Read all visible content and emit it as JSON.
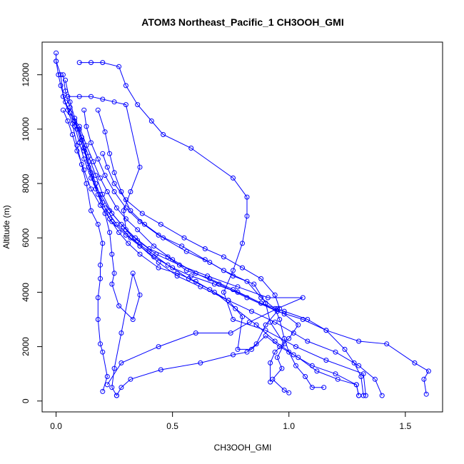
{
  "chart_data": {
    "type": "line",
    "title": "ATOM3 Northeast_Pacific_1 CH3OOH_GMI",
    "xlabel": "CH3OOH_GMI",
    "ylabel": "Altitude (m)",
    "xlim": [
      -0.06,
      1.66
    ],
    "ylim": [
      -400,
      13200
    ],
    "xticks": [
      "0.0",
      "0.5",
      "1.0",
      "1.5"
    ],
    "xtick_values": [
      0,
      0.5,
      1.0,
      1.5
    ],
    "yticks": [
      "0",
      "2000",
      "4000",
      "6000",
      "8000",
      "10000",
      "12000"
    ],
    "ytick_values": [
      0,
      2000,
      4000,
      6000,
      8000,
      10000,
      12000
    ],
    "grid": false,
    "legend": "none",
    "colors": {
      "series": "#0000ff",
      "axis": "#000000"
    },
    "series": [
      {
        "points": [
          [
            0.0,
            12800
          ],
          [
            0.0,
            12500
          ],
          [
            0.02,
            12000
          ],
          [
            0.03,
            11200
          ],
          [
            0.05,
            10700
          ],
          [
            0.07,
            10200
          ],
          [
            0.09,
            9400
          ],
          [
            0.11,
            8700
          ],
          [
            0.13,
            8000
          ],
          [
            0.15,
            7000
          ],
          [
            0.18,
            6500
          ],
          [
            0.2,
            5800
          ],
          [
            0.19,
            5000
          ],
          [
            0.19,
            4500
          ],
          [
            0.18,
            3800
          ],
          [
            0.18,
            3000
          ],
          [
            0.19,
            2100
          ],
          [
            0.2,
            1800
          ],
          [
            0.22,
            900
          ],
          [
            0.2,
            350
          ]
        ]
      },
      {
        "points": [
          [
            0.03,
            12000
          ],
          [
            0.04,
            11400
          ],
          [
            0.06,
            10800
          ],
          [
            0.09,
            10000
          ],
          [
            0.12,
            9200
          ],
          [
            0.15,
            8400
          ],
          [
            0.18,
            7600
          ],
          [
            0.21,
            6900
          ],
          [
            0.23,
            6200
          ],
          [
            0.24,
            5400
          ],
          [
            0.25,
            4700
          ],
          [
            0.24,
            4300
          ],
          [
            0.27,
            3500
          ],
          [
            0.33,
            3000
          ],
          [
            0.36,
            3900
          ],
          [
            0.33,
            4700
          ],
          [
            0.28,
            2500
          ],
          [
            0.25,
            1200
          ],
          [
            0.24,
            500
          ],
          [
            0.26,
            200
          ]
        ]
      },
      {
        "points": [
          [
            0.04,
            11800
          ],
          [
            0.06,
            11000
          ],
          [
            0.08,
            10400
          ],
          [
            0.11,
            9600
          ],
          [
            0.14,
            8800
          ],
          [
            0.17,
            8000
          ],
          [
            0.2,
            7300
          ],
          [
            0.23,
            6700
          ],
          [
            0.27,
            6200
          ],
          [
            0.31,
            5800
          ],
          [
            0.36,
            5400
          ],
          [
            0.44,
            4900
          ],
          [
            0.52,
            4700
          ],
          [
            0.6,
            4400
          ],
          [
            0.68,
            4000
          ],
          [
            0.77,
            3400
          ],
          [
            0.86,
            2800
          ],
          [
            0.94,
            2200
          ],
          [
            1.02,
            1700
          ],
          [
            1.1,
            1300
          ],
          [
            1.2,
            1000
          ],
          [
            1.29,
            600
          ],
          [
            1.3,
            200
          ]
        ]
      },
      {
        "points": [
          [
            0.1,
            12450
          ],
          [
            0.15,
            12450
          ],
          [
            0.2,
            12450
          ],
          [
            0.27,
            12300
          ],
          [
            0.3,
            11600
          ],
          [
            0.35,
            10900
          ],
          [
            0.41,
            10300
          ],
          [
            0.46,
            9800
          ],
          [
            0.58,
            9300
          ],
          [
            0.76,
            8200
          ],
          [
            0.82,
            7500
          ],
          [
            0.82,
            6800
          ],
          [
            0.8,
            5800
          ],
          [
            0.76,
            4800
          ],
          [
            0.72,
            4000
          ],
          [
            0.76,
            3000
          ],
          [
            0.9,
            2600
          ],
          [
            1.03,
            2000
          ],
          [
            1.16,
            1500
          ],
          [
            1.32,
            1000
          ],
          [
            1.33,
            200
          ]
        ]
      },
      {
        "points": [
          [
            0.05,
            11200
          ],
          [
            0.1,
            11200
          ],
          [
            0.15,
            11200
          ],
          [
            0.2,
            11100
          ],
          [
            0.25,
            11000
          ],
          [
            0.3,
            10900
          ],
          [
            0.36,
            8600
          ],
          [
            0.32,
            7700
          ],
          [
            0.29,
            7000
          ],
          [
            0.3,
            6300
          ],
          [
            0.36,
            5700
          ],
          [
            0.44,
            5100
          ],
          [
            0.52,
            4600
          ],
          [
            0.62,
            4200
          ],
          [
            0.74,
            3700
          ],
          [
            0.84,
            3300
          ],
          [
            0.94,
            2900
          ],
          [
            1.02,
            2500
          ],
          [
            1.08,
            2200
          ],
          [
            1.2,
            1800
          ],
          [
            1.3,
            1300
          ],
          [
            1.37,
            800
          ],
          [
            1.4,
            200
          ]
        ]
      },
      {
        "points": [
          [
            0.06,
            10600
          ],
          [
            0.1,
            10100
          ],
          [
            0.13,
            9400
          ],
          [
            0.16,
            8800
          ],
          [
            0.19,
            8200
          ],
          [
            0.22,
            7700
          ],
          [
            0.26,
            7100
          ],
          [
            0.3,
            6700
          ],
          [
            0.35,
            6300
          ],
          [
            0.42,
            5700
          ],
          [
            0.5,
            5200
          ],
          [
            0.6,
            4700
          ],
          [
            0.7,
            4300
          ],
          [
            0.82,
            3800
          ],
          [
            0.95,
            3300
          ],
          [
            1.06,
            3000
          ],
          [
            1.16,
            2600
          ],
          [
            1.3,
            2200
          ],
          [
            1.42,
            2100
          ],
          [
            1.54,
            1400
          ],
          [
            1.6,
            1100
          ],
          [
            1.58,
            800
          ],
          [
            1.59,
            250
          ]
        ]
      },
      {
        "points": [
          [
            0.08,
            10300
          ],
          [
            0.11,
            9700
          ],
          [
            0.14,
            9000
          ],
          [
            0.17,
            8300
          ],
          [
            0.2,
            7600
          ],
          [
            0.24,
            6900
          ],
          [
            0.29,
            6400
          ],
          [
            0.35,
            5900
          ],
          [
            0.43,
            5400
          ],
          [
            0.53,
            5000
          ],
          [
            0.65,
            4600
          ],
          [
            0.78,
            4200
          ],
          [
            0.91,
            3800
          ],
          [
            1.06,
            3800
          ],
          [
            0.95,
            3400
          ],
          [
            0.83,
            2900
          ],
          [
            0.75,
            2500
          ],
          [
            0.6,
            2500
          ],
          [
            0.44,
            2000
          ],
          [
            0.28,
            1400
          ],
          [
            0.22,
            600
          ]
        ]
      },
      {
        "points": [
          [
            0.12,
            10700
          ],
          [
            0.13,
            10100
          ],
          [
            0.15,
            9500
          ],
          [
            0.18,
            8900
          ],
          [
            0.21,
            8300
          ],
          [
            0.25,
            7700
          ],
          [
            0.3,
            7100
          ],
          [
            0.36,
            6600
          ],
          [
            0.44,
            6100
          ],
          [
            0.54,
            5700
          ],
          [
            0.64,
            5200
          ],
          [
            0.72,
            4800
          ],
          [
            0.82,
            4400
          ],
          [
            0.88,
            3800
          ],
          [
            0.94,
            3400
          ],
          [
            0.96,
            3000
          ],
          [
            0.98,
            2300
          ],
          [
            1.0,
            1800
          ],
          [
            1.03,
            1300
          ],
          [
            1.07,
            900
          ],
          [
            1.1,
            500
          ],
          [
            1.15,
            500
          ]
        ]
      },
      {
        "points": [
          [
            0.18,
            10700
          ],
          [
            0.21,
            9900
          ],
          [
            0.23,
            9100
          ],
          [
            0.25,
            8400
          ],
          [
            0.28,
            7700
          ],
          [
            0.32,
            7000
          ],
          [
            0.38,
            6500
          ],
          [
            0.46,
            6000
          ],
          [
            0.56,
            5500
          ],
          [
            0.66,
            5100
          ],
          [
            0.76,
            4600
          ],
          [
            0.85,
            4300
          ],
          [
            0.9,
            3600
          ],
          [
            0.92,
            2900
          ],
          [
            0.98,
            2100
          ],
          [
            0.95,
            1600
          ],
          [
            0.97,
            1200
          ],
          [
            0.93,
            800
          ],
          [
            0.98,
            400
          ],
          [
            1.0,
            300
          ]
        ]
      },
      {
        "points": [
          [
            0.2,
            9100
          ],
          [
            0.22,
            8600
          ],
          [
            0.25,
            8000
          ],
          [
            0.3,
            7400
          ],
          [
            0.37,
            6900
          ],
          [
            0.45,
            6500
          ],
          [
            0.55,
            6000
          ],
          [
            0.64,
            5600
          ],
          [
            0.72,
            5300
          ],
          [
            0.8,
            4900
          ],
          [
            0.88,
            4500
          ],
          [
            0.94,
            3900
          ],
          [
            0.96,
            3400
          ],
          [
            0.9,
            2800
          ],
          [
            0.86,
            2100
          ],
          [
            0.82,
            1800
          ],
          [
            0.76,
            1700
          ],
          [
            0.62,
            1400
          ],
          [
            0.45,
            1150
          ],
          [
            0.32,
            800
          ],
          [
            0.28,
            500
          ],
          [
            0.26,
            200
          ]
        ]
      },
      {
        "points": [
          [
            0.1,
            10000
          ],
          [
            0.12,
            9300
          ],
          [
            0.14,
            8600
          ],
          [
            0.17,
            7800
          ],
          [
            0.21,
            7100
          ],
          [
            0.26,
            6500
          ],
          [
            0.32,
            6000
          ],
          [
            0.4,
            5500
          ],
          [
            0.48,
            5000
          ],
          [
            0.57,
            4500
          ],
          [
            0.66,
            4100
          ],
          [
            0.74,
            3700
          ],
          [
            0.8,
            3100
          ],
          [
            0.78,
            1900
          ],
          [
            0.84,
            1900
          ],
          [
            0.9,
            2400
          ],
          [
            0.96,
            2000
          ],
          [
            1.04,
            1600
          ],
          [
            1.12,
            1100
          ],
          [
            1.21,
            800
          ],
          [
            1.29,
            600
          ],
          [
            1.3,
            200
          ]
        ]
      },
      {
        "points": [
          [
            0.0,
            12500
          ],
          [
            0.01,
            12000
          ],
          [
            0.02,
            11600
          ],
          [
            0.04,
            11000
          ],
          [
            0.06,
            10600
          ],
          [
            0.08,
            10100
          ],
          [
            0.1,
            9500
          ],
          [
            0.12,
            8900
          ],
          [
            0.15,
            8200
          ],
          [
            0.19,
            7600
          ],
          [
            0.23,
            7000
          ],
          [
            0.28,
            6500
          ],
          [
            0.34,
            6000
          ],
          [
            0.4,
            5600
          ],
          [
            0.48,
            5300
          ],
          [
            0.56,
            4800
          ],
          [
            0.66,
            4500
          ],
          [
            0.76,
            4100
          ],
          [
            0.88,
            3600
          ],
          [
            0.98,
            3300
          ],
          [
            1.08,
            3000
          ],
          [
            1.16,
            2600
          ],
          [
            1.24,
            1900
          ],
          [
            1.28,
            1400
          ],
          [
            1.31,
            900
          ],
          [
            1.32,
            200
          ]
        ]
      },
      {
        "points": [
          [
            0.03,
            10700
          ],
          [
            0.05,
            10300
          ],
          [
            0.07,
            9800
          ],
          [
            0.09,
            9200
          ],
          [
            0.12,
            8500
          ],
          [
            0.15,
            7800
          ],
          [
            0.19,
            7200
          ],
          [
            0.24,
            6600
          ],
          [
            0.3,
            6100
          ],
          [
            0.36,
            5700
          ],
          [
            0.42,
            5300
          ],
          [
            0.5,
            4900
          ],
          [
            0.58,
            4600
          ],
          [
            0.68,
            4300
          ],
          [
            0.78,
            4000
          ],
          [
            0.88,
            3600
          ],
          [
            0.98,
            3200
          ],
          [
            1.04,
            2800
          ],
          [
            1.0,
            2300
          ],
          [
            0.94,
            1800
          ],
          [
            0.92,
            1400
          ],
          [
            0.92,
            700
          ]
        ]
      }
    ]
  }
}
